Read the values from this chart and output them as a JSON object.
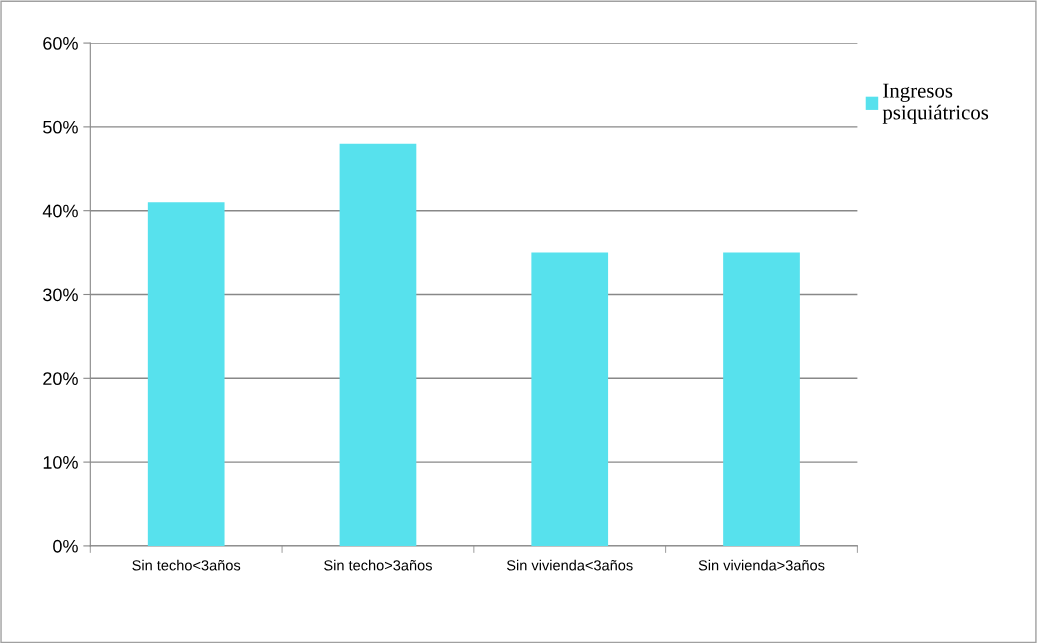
{
  "chart_data": {
    "type": "bar",
    "categories": [
      "Sin techo<3años",
      "Sin techo>3años",
      "Sin vivienda<3años",
      "Sin vivienda>3años"
    ],
    "series": [
      {
        "name": "Ingresos\npsiquiátricos",
        "color": "#57e1ed",
        "values": [
          41,
          48,
          35,
          35
        ]
      }
    ],
    "ylim": [
      0,
      60
    ],
    "yticks": [
      {
        "value": 0,
        "label": "0%"
      },
      {
        "value": 10,
        "label": "10%"
      },
      {
        "value": 20,
        "label": "20%"
      },
      {
        "value": 30,
        "label": "30%"
      },
      {
        "value": 40,
        "label": "40%"
      },
      {
        "value": 50,
        "label": "50%"
      },
      {
        "value": 60,
        "label": "60%"
      }
    ],
    "grid": "y",
    "legend": "right"
  }
}
